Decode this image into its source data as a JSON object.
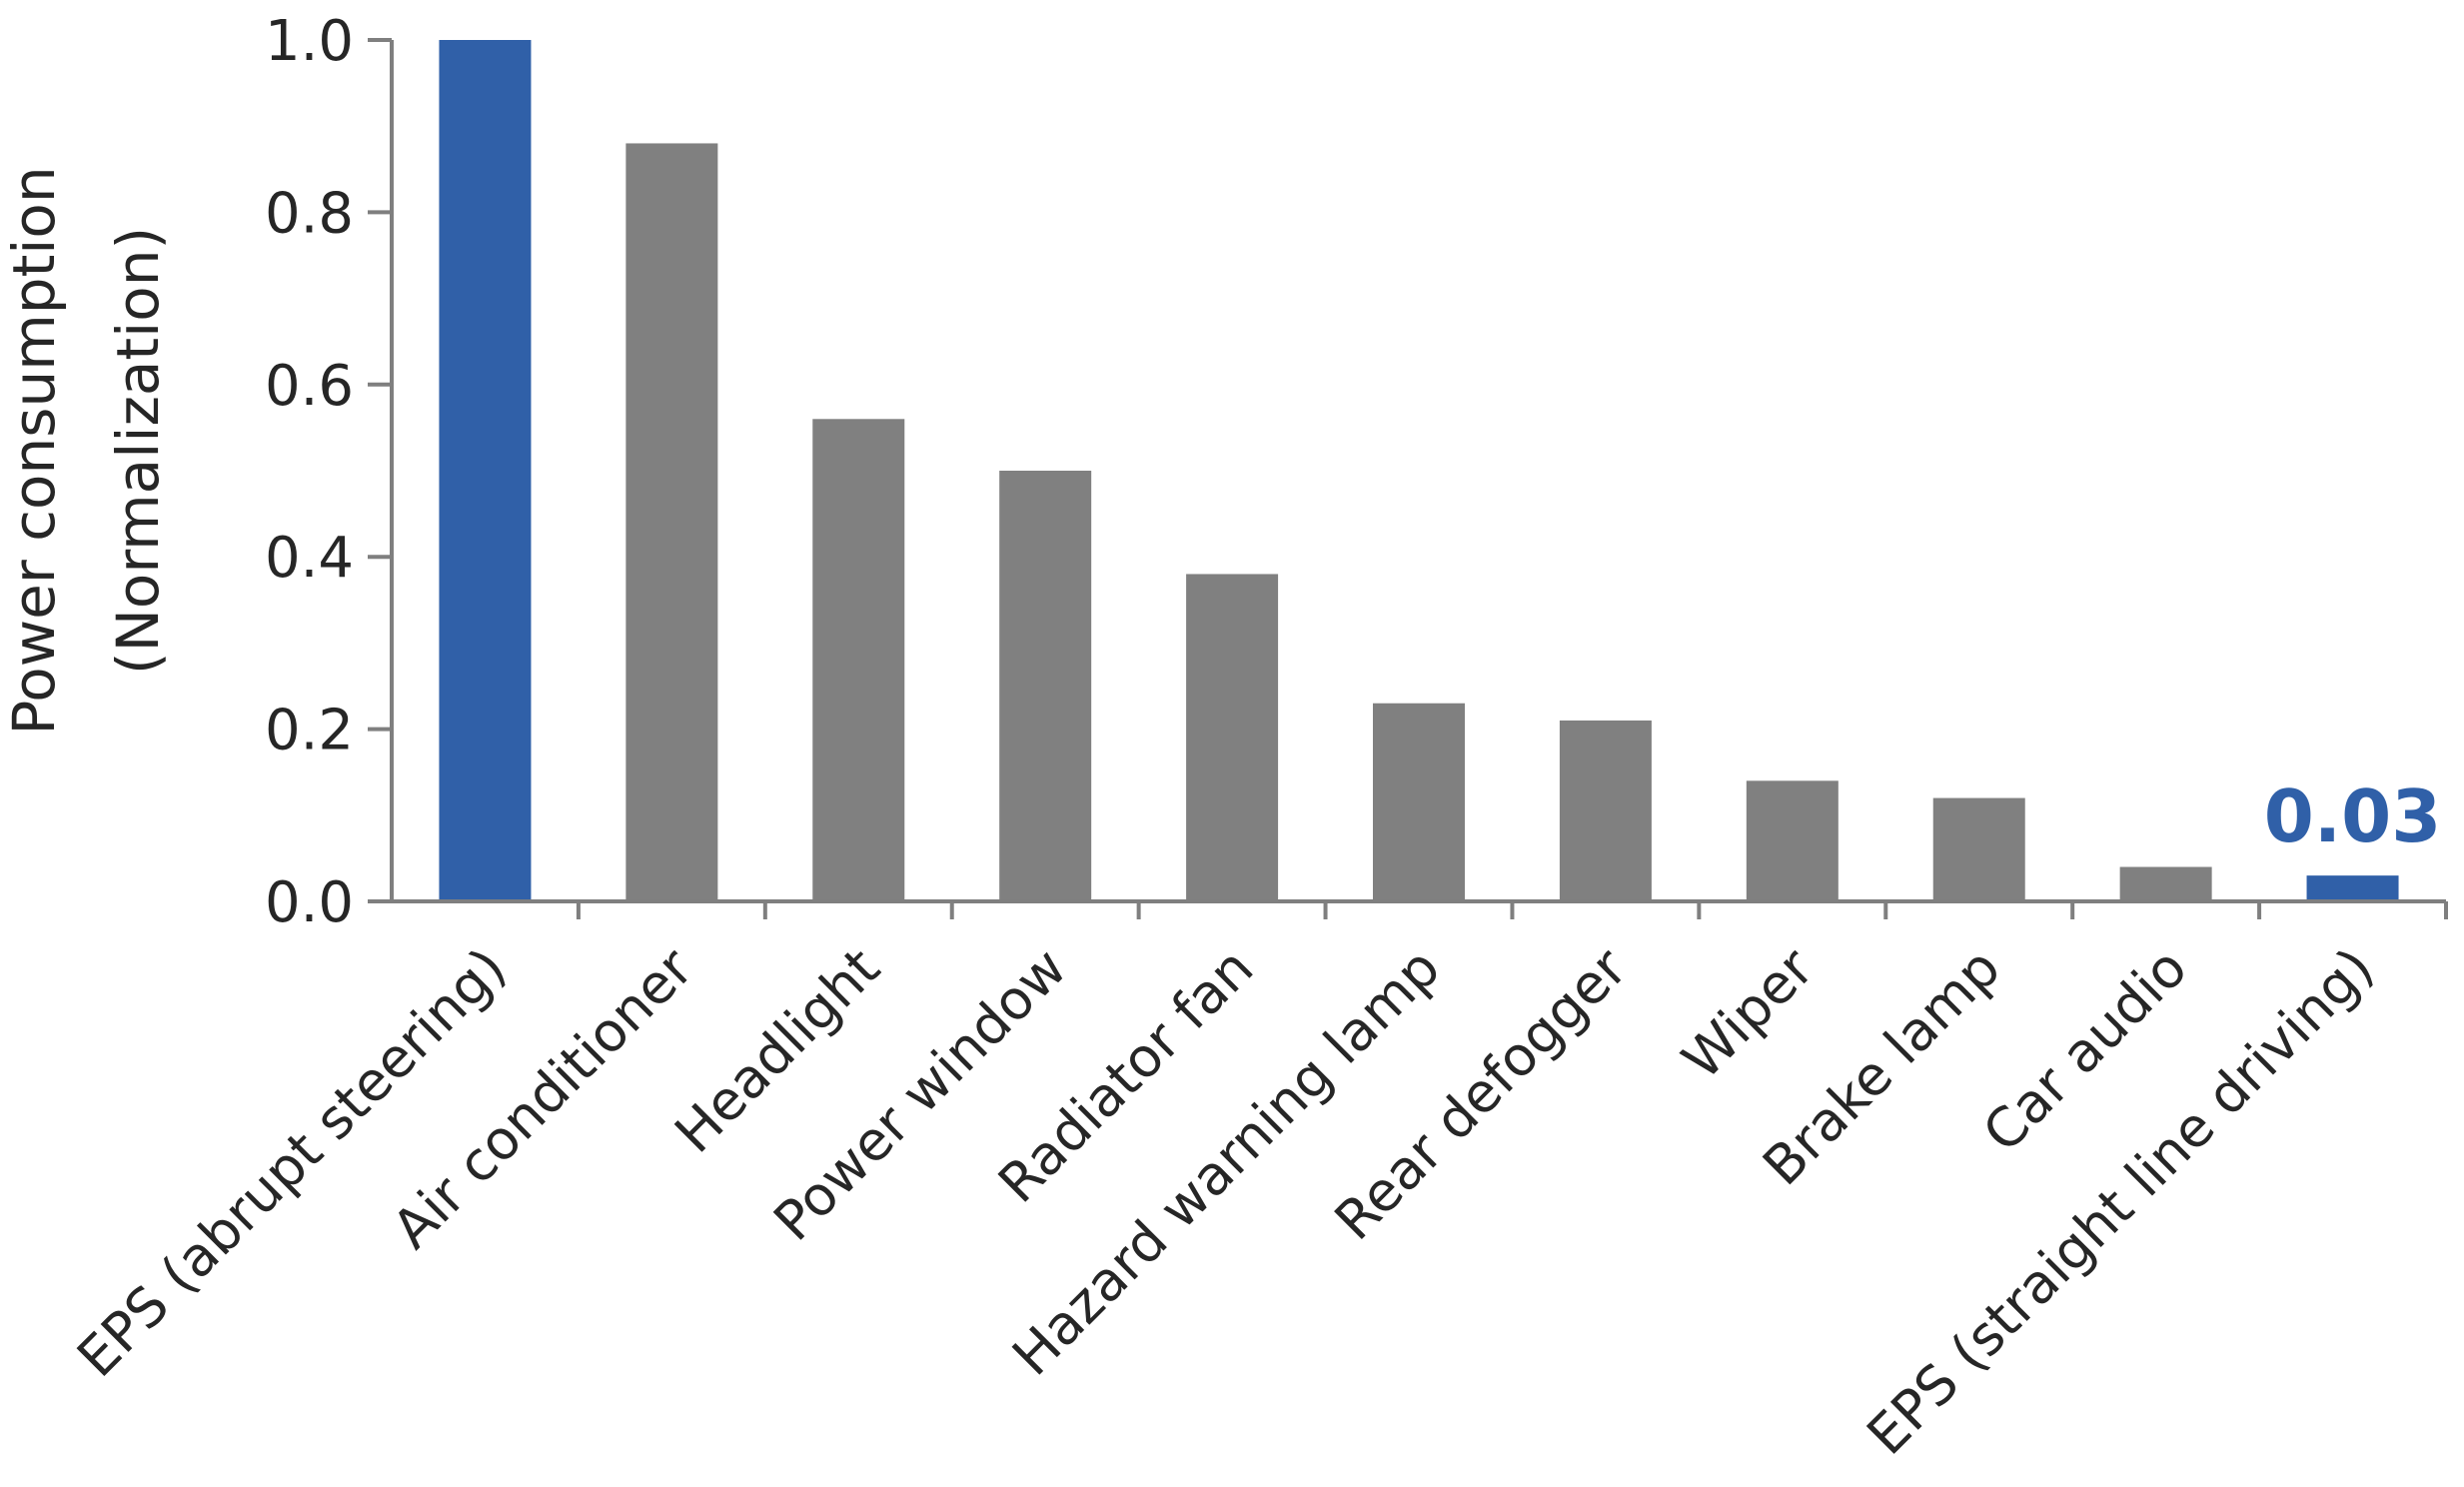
{
  "chart_data": {
    "type": "bar",
    "title": "",
    "xlabel": "",
    "ylabel_lines": [
      "Power consumption",
      "(Normalization)"
    ],
    "ylim": [
      0,
      1.0
    ],
    "yticks": [
      "0.0",
      "0.2",
      "0.4",
      "0.6",
      "0.8",
      "1.0"
    ],
    "grid": false,
    "legend": "none",
    "categories": [
      "EPS (abrupt steering)",
      "Air conditioner",
      "Headlight",
      "Power window",
      "Radiator fan",
      "Hazard warning lamp",
      "Rear defogger",
      "Wiper",
      "Brake lamp",
      "Car audio",
      "EPS (straight line driving)"
    ],
    "values": [
      1.0,
      0.88,
      0.56,
      0.5,
      0.38,
      0.23,
      0.21,
      0.14,
      0.12,
      0.04,
      0.03
    ],
    "colors": [
      "#3060a8",
      "#808080",
      "#808080",
      "#808080",
      "#808080",
      "#808080",
      "#808080",
      "#808080",
      "#808080",
      "#808080",
      "#3060a8"
    ],
    "annotations": [
      {
        "category": "EPS (straight line driving)",
        "text": "0.03",
        "color": "#3060a8"
      }
    ]
  }
}
